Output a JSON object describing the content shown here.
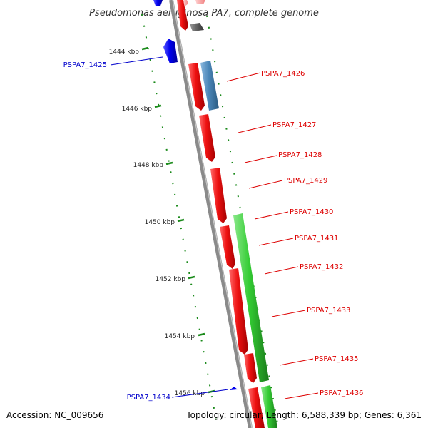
{
  "title": "Pseudomonas aeruginosa PA7, complete genome",
  "footer": {
    "accession": "Accession: NC_009656",
    "topology": "Topology: circular; Length: 6,588,339 bp; Genes: 6,361"
  },
  "colors": {
    "backbone": "#8a8a8a",
    "tick": "#1a8a1a",
    "forward_label": "#dd0000",
    "reverse_label": "#0000cc",
    "red_gene": "#ee1111",
    "blue_gene": "#0000ee",
    "steel_gene": "#4a86b8",
    "green_gene": "#33cc33",
    "gray_gene": "#666666"
  },
  "ticks": [
    "1444 kbp",
    "1446 kbp",
    "1448 kbp",
    "1450 kbp",
    "1452 kbp",
    "1454 kbp",
    "1456 kbp"
  ],
  "gene_labels": [
    {
      "name": "PSPA7_1425",
      "strand": "reverse"
    },
    {
      "name": "PSPA7_1426",
      "strand": "forward"
    },
    {
      "name": "PSPA7_1427",
      "strand": "forward"
    },
    {
      "name": "PSPA7_1428",
      "strand": "forward"
    },
    {
      "name": "PSPA7_1429",
      "strand": "forward"
    },
    {
      "name": "PSPA7_1430",
      "strand": "forward"
    },
    {
      "name": "PSPA7_1431",
      "strand": "forward"
    },
    {
      "name": "PSPA7_1432",
      "strand": "forward"
    },
    {
      "name": "PSPA7_1433",
      "strand": "forward"
    },
    {
      "name": "PSPA7_1434",
      "strand": "reverse"
    },
    {
      "name": "PSPA7_1435",
      "strand": "forward"
    },
    {
      "name": "PSPA7_1436",
      "strand": "forward"
    }
  ]
}
